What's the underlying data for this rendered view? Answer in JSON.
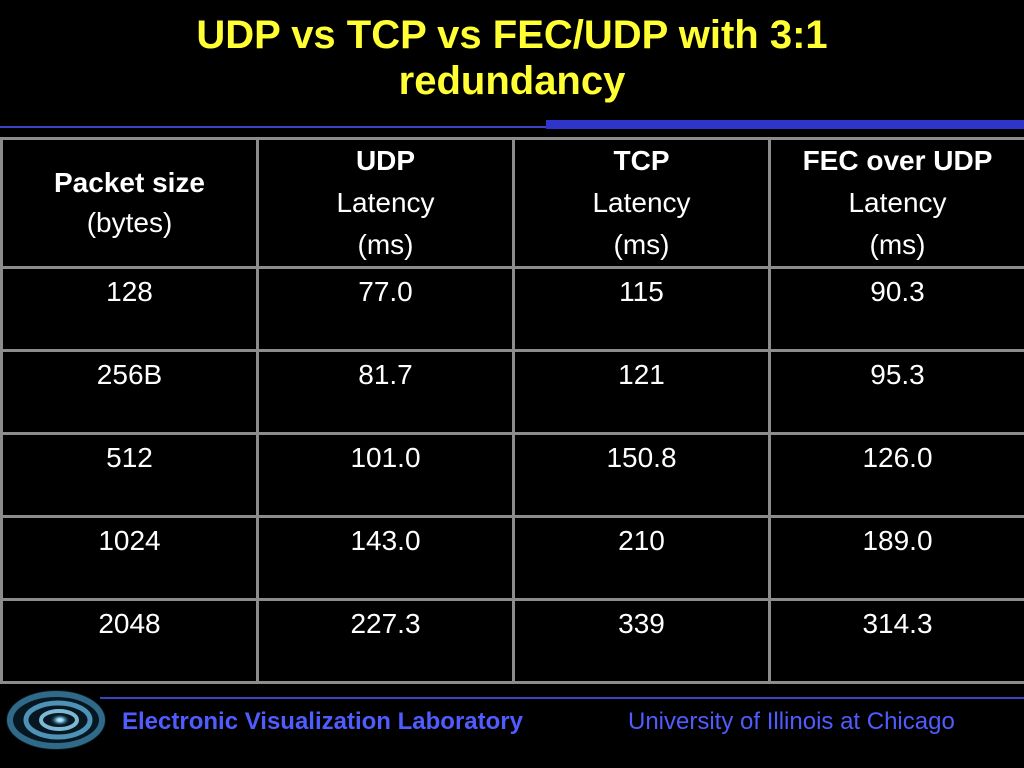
{
  "slide": {
    "title_line1": "UDP vs TCP vs FEC/UDP with 3:1",
    "title_line2": "redundancy"
  },
  "table": {
    "headers": [
      {
        "main": "Packet size",
        "sub1": "(bytes)",
        "sub2": ""
      },
      {
        "main": "UDP",
        "sub1": "Latency",
        "sub2": "(ms)"
      },
      {
        "main": "TCP",
        "sub1": "Latency",
        "sub2": "(ms)"
      },
      {
        "main": "FEC over UDP",
        "sub1": "Latency",
        "sub2": "(ms)"
      }
    ],
    "rows": [
      [
        "128",
        "77.0",
        "115",
        "90.3"
      ],
      [
        "256B",
        "81.7",
        "121",
        "95.3"
      ],
      [
        "512",
        "101.0",
        "150.8",
        "126.0"
      ],
      [
        "1024",
        "143.0",
        "210",
        "189.0"
      ],
      [
        "2048",
        "227.3",
        "339",
        "314.3"
      ]
    ]
  },
  "footer": {
    "lab": "Electronic Visualization Laboratory",
    "university": "University of Illinois at Chicago",
    "logo_icon": "spiral-galaxy-logo"
  },
  "colors": {
    "background": "#000000",
    "title": "#ffff33",
    "accent_blue": "#2f35c8",
    "footer_text": "#4f5cff",
    "grid": "#8c8c8c"
  }
}
